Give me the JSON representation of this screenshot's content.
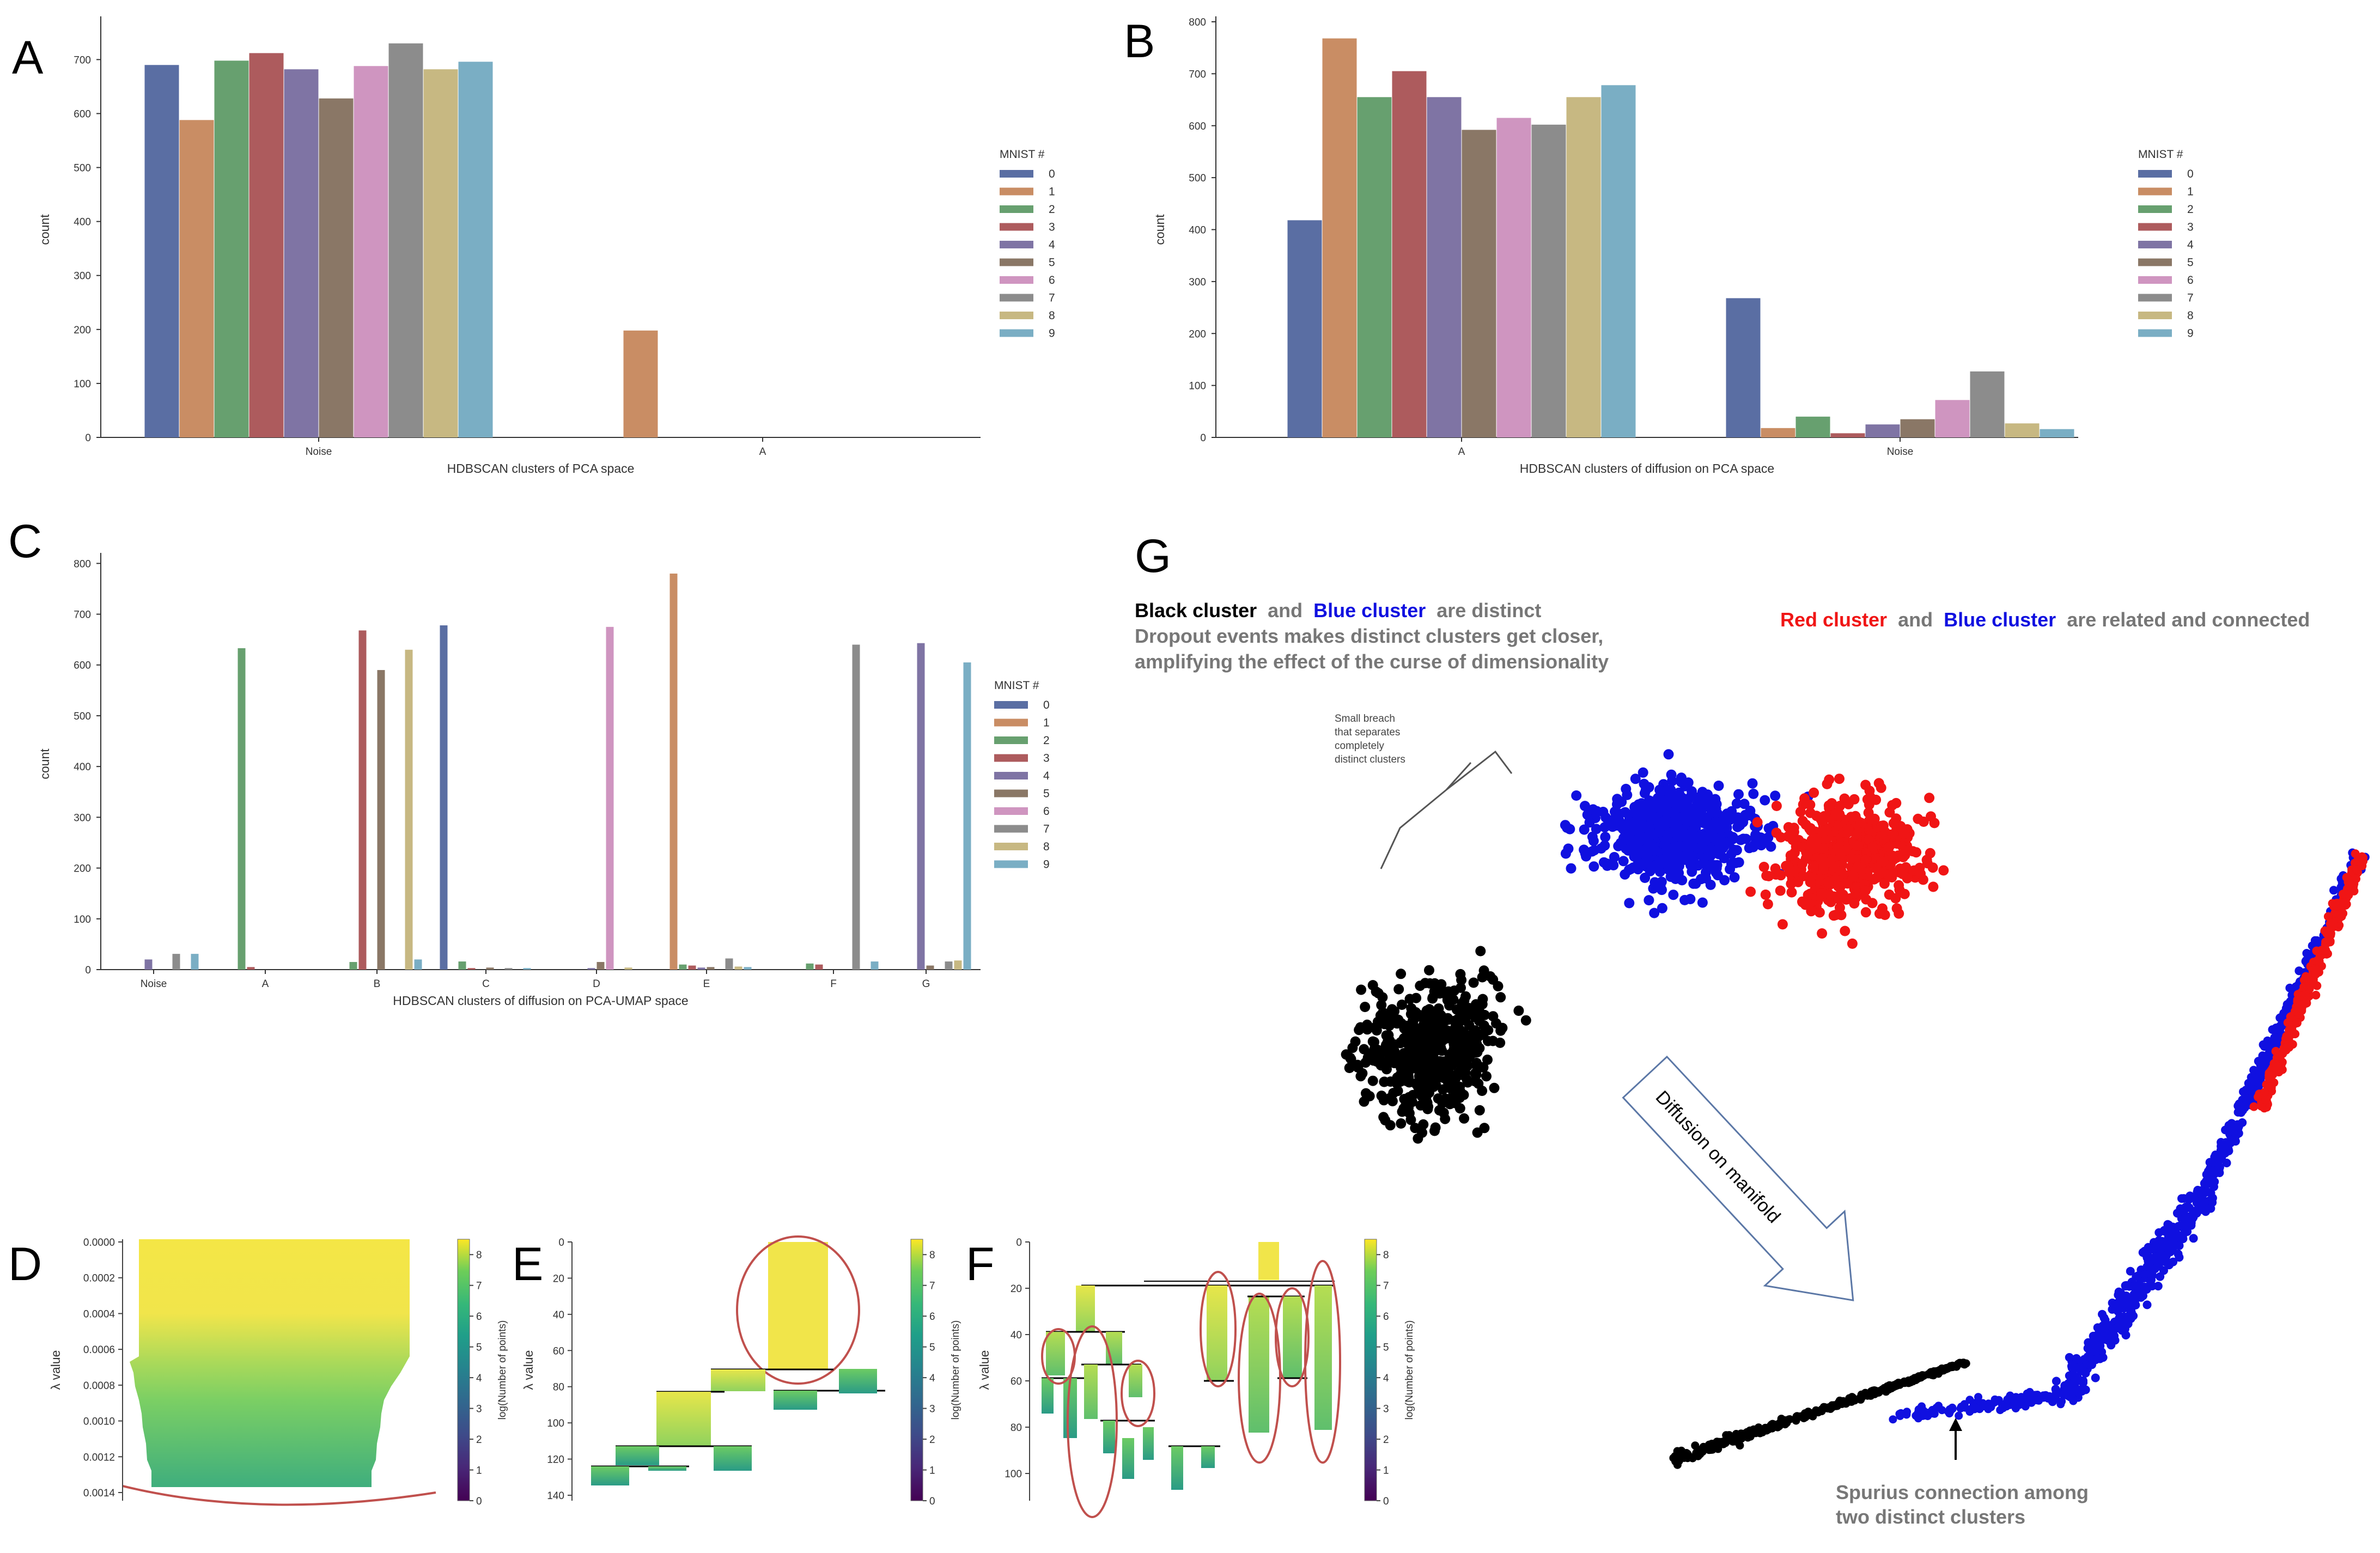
{
  "figure": {
    "panel_labels": [
      "A",
      "B",
      "C",
      "D",
      "E",
      "F",
      "G"
    ],
    "legend_title": "MNIST #",
    "legend_items": [
      "0",
      "1",
      "2",
      "3",
      "4",
      "5",
      "6",
      "7",
      "8",
      "9"
    ],
    "palette": [
      "#5a6ea3",
      "#c98d64",
      "#67a06f",
      "#ad5b5d",
      "#7f74a4",
      "#8a7766",
      "#cf95c0",
      "#8c8c8c",
      "#c7b882",
      "#7aaec4"
    ],
    "colorbar_label": "log(Number of points)",
    "colorbar_ticks": [
      "0",
      "1",
      "2",
      "3",
      "4",
      "5",
      "6",
      "7",
      "8"
    ],
    "lambda_label": "λ value",
    "g_annotations": {
      "black": "Black cluster",
      "and1": "and",
      "blue": "Blue cluster",
      "distinct": "are distinct",
      "dropout1": "Dropout events makes distinct clusters get closer,",
      "dropout2": "amplifying the effect of the curse of dimensionality",
      "red": "Red cluster",
      "and2": "and",
      "blue2": "Blue cluster",
      "related": "are related and connected",
      "breach1": "Small breach",
      "breach2": "that separates",
      "breach3": "completely",
      "breach4": "distinct clusters",
      "diffusion": "Diffusion on manifold",
      "spurious1": "Spurius connection among",
      "spurious2": "two distinct clusters"
    }
  },
  "chart_data": [
    {
      "id": "A",
      "type": "bar",
      "title": "",
      "xlabel": "HDBSCAN clusters of PCA space",
      "ylabel": "count",
      "ylim": [
        0,
        770
      ],
      "yticks": [
        0,
        100,
        200,
        300,
        400,
        500,
        600,
        700
      ],
      "categories": [
        "Noise",
        "A"
      ],
      "series": [
        {
          "name": "0",
          "values": [
            690,
            0
          ]
        },
        {
          "name": "1",
          "values": [
            588,
            198
          ]
        },
        {
          "name": "2",
          "values": [
            698,
            0
          ]
        },
        {
          "name": "3",
          "values": [
            712,
            0
          ]
        },
        {
          "name": "4",
          "values": [
            682,
            0
          ]
        },
        {
          "name": "5",
          "values": [
            628,
            0
          ]
        },
        {
          "name": "6",
          "values": [
            688,
            0
          ]
        },
        {
          "name": "7",
          "values": [
            730,
            0
          ]
        },
        {
          "name": "8",
          "values": [
            682,
            0
          ]
        },
        {
          "name": "9",
          "values": [
            696,
            0
          ]
        }
      ]
    },
    {
      "id": "B",
      "type": "bar",
      "xlabel": "HDBSCAN clusters of diffusion on PCA space",
      "ylabel": "count",
      "ylim": [
        0,
        800
      ],
      "yticks": [
        0,
        100,
        200,
        300,
        400,
        500,
        600,
        700,
        800
      ],
      "categories": [
        "A",
        "Noise"
      ],
      "series": [
        {
          "name": "0",
          "values": [
            418,
            268
          ]
        },
        {
          "name": "1",
          "values": [
            768,
            18
          ]
        },
        {
          "name": "2",
          "values": [
            655,
            40
          ]
        },
        {
          "name": "3",
          "values": [
            705,
            8
          ]
        },
        {
          "name": "4",
          "values": [
            655,
            25
          ]
        },
        {
          "name": "5",
          "values": [
            592,
            35
          ]
        },
        {
          "name": "6",
          "values": [
            615,
            72
          ]
        },
        {
          "name": "7",
          "values": [
            602,
            127
          ]
        },
        {
          "name": "8",
          "values": [
            655,
            27
          ]
        },
        {
          "name": "9",
          "values": [
            678,
            16
          ]
        }
      ]
    },
    {
      "id": "C",
      "type": "bar",
      "xlabel": "HDBSCAN clusters of diffusion on PCA-UMAP space",
      "ylabel": "count",
      "ylim": [
        0,
        810
      ],
      "yticks": [
        0,
        100,
        200,
        300,
        400,
        500,
        600,
        700,
        800
      ],
      "categories": [
        "Noise",
        "A",
        "B",
        "C",
        "D",
        "E",
        "F",
        "G"
      ],
      "series": [
        {
          "name": "0",
          "values": [
            0,
            0,
            0,
            678,
            0,
            0,
            0,
            0
          ]
        },
        {
          "name": "1",
          "values": [
            0,
            0,
            0,
            0,
            0,
            780,
            0,
            0
          ]
        },
        {
          "name": "2",
          "values": [
            0,
            633,
            15,
            16,
            0,
            10,
            12,
            0
          ]
        },
        {
          "name": "3",
          "values": [
            0,
            5,
            668,
            3,
            0,
            8,
            10,
            0
          ]
        },
        {
          "name": "4",
          "values": [
            20,
            0,
            0,
            0,
            3,
            4,
            0,
            643
          ]
        },
        {
          "name": "5",
          "values": [
            0,
            0,
            590,
            4,
            15,
            5,
            0,
            8
          ]
        },
        {
          "name": "6",
          "values": [
            0,
            0,
            0,
            0,
            675,
            0,
            0,
            0
          ]
        },
        {
          "name": "7",
          "values": [
            31,
            0,
            0,
            3,
            0,
            22,
            640,
            16
          ]
        },
        {
          "name": "8",
          "values": [
            0,
            0,
            630,
            0,
            4,
            6,
            0,
            18
          ]
        },
        {
          "name": "9",
          "values": [
            31,
            0,
            20,
            3,
            0,
            5,
            16,
            605
          ]
        }
      ]
    },
    {
      "id": "D",
      "type": "heatmap",
      "ylabel": "λ value",
      "ylim": [
        0,
        0.0014
      ],
      "yticks": [
        "0.0000",
        "0.0002",
        "0.0004",
        "0.0006",
        "0.0008",
        "0.0010",
        "0.0012",
        "0.0014"
      ],
      "colorbar": {
        "label": "log(Number of points)",
        "range": [
          0,
          8.5
        ]
      }
    },
    {
      "id": "E",
      "type": "heatmap",
      "ylabel": "λ value",
      "ylim": [
        0,
        145
      ],
      "yticks": [
        "0",
        "20",
        "40",
        "60",
        "80",
        "100",
        "120",
        "140"
      ],
      "colorbar": {
        "label": "log(Number of points)",
        "range": [
          0,
          8.5
        ]
      }
    },
    {
      "id": "F",
      "type": "heatmap",
      "ylabel": "λ value",
      "ylim": [
        0,
        110
      ],
      "yticks": [
        "0",
        "20",
        "40",
        "60",
        "80",
        "100"
      ],
      "colorbar": {
        "label": "log(Number of points)",
        "range": [
          0,
          8.5
        ]
      }
    },
    {
      "id": "G",
      "type": "scatter",
      "series": [
        {
          "name": "Black cluster",
          "color": "#000000"
        },
        {
          "name": "Blue cluster",
          "color": "#1010e0"
        },
        {
          "name": "Red cluster",
          "color": "#f01515"
        }
      ]
    }
  ]
}
